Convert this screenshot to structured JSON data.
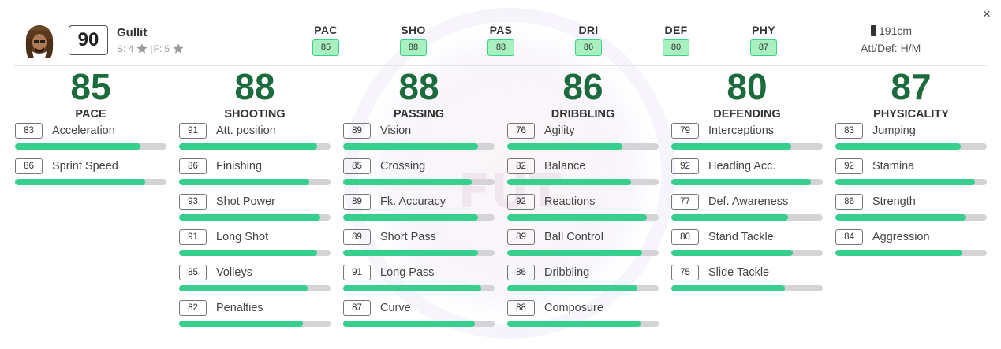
{
  "player": {
    "name": "Gullit",
    "rating": "90",
    "skills_label": "S: 4",
    "separator": "|",
    "weak_foot_label": "F: 5",
    "height": "191cm",
    "work_rate": "Att/Def: H/M"
  },
  "header_stats": [
    {
      "label": "PAC",
      "value": "85"
    },
    {
      "label": "SHO",
      "value": "88"
    },
    {
      "label": "PAS",
      "value": "88"
    },
    {
      "label": "DRI",
      "value": "86"
    },
    {
      "label": "DEF",
      "value": "80"
    },
    {
      "label": "PHY",
      "value": "87"
    }
  ],
  "close_label": "×",
  "watermark_text": "FUT",
  "colors": {
    "accent_green": "#1c6b3d",
    "bar_fill": "#36cf8d",
    "bar_track": "#d4d4d6",
    "badge_bg": "#a8f0c0",
    "badge_border": "#3ecf8e"
  },
  "categories": [
    {
      "value": "85",
      "name": "PACE",
      "attributes": [
        {
          "value": "83",
          "name": "Acceleration",
          "level": 83
        },
        {
          "value": "86",
          "name": "Sprint Speed",
          "level": 86
        }
      ]
    },
    {
      "value": "88",
      "name": "SHOOTING",
      "attributes": [
        {
          "value": "91",
          "name": "Att. position",
          "level": 91
        },
        {
          "value": "86",
          "name": "Finishing",
          "level": 86
        },
        {
          "value": "93",
          "name": "Shot Power",
          "level": 93
        },
        {
          "value": "91",
          "name": "Long Shot",
          "level": 91
        },
        {
          "value": "85",
          "name": "Volleys",
          "level": 85
        },
        {
          "value": "82",
          "name": "Penalties",
          "level": 82
        }
      ]
    },
    {
      "value": "88",
      "name": "PASSING",
      "attributes": [
        {
          "value": "89",
          "name": "Vision",
          "level": 89
        },
        {
          "value": "85",
          "name": "Crossing",
          "level": 85
        },
        {
          "value": "89",
          "name": "Fk. Accuracy",
          "level": 89
        },
        {
          "value": "89",
          "name": "Short Pass",
          "level": 89
        },
        {
          "value": "91",
          "name": "Long Pass",
          "level": 91
        },
        {
          "value": "87",
          "name": "Curve",
          "level": 87
        }
      ]
    },
    {
      "value": "86",
      "name": "DRIBBLING",
      "attributes": [
        {
          "value": "76",
          "name": "Agility",
          "level": 76
        },
        {
          "value": "82",
          "name": "Balance",
          "level": 82
        },
        {
          "value": "92",
          "name": "Reactions",
          "level": 92
        },
        {
          "value": "89",
          "name": "Ball Control",
          "level": 89
        },
        {
          "value": "86",
          "name": "Dribbling",
          "level": 86
        },
        {
          "value": "88",
          "name": "Composure",
          "level": 88
        }
      ]
    },
    {
      "value": "80",
      "name": "DEFENDING",
      "attributes": [
        {
          "value": "79",
          "name": "Interceptions",
          "level": 79
        },
        {
          "value": "92",
          "name": "Heading Acc.",
          "level": 92
        },
        {
          "value": "77",
          "name": "Def. Awareness",
          "level": 77
        },
        {
          "value": "80",
          "name": "Stand Tackle",
          "level": 80
        },
        {
          "value": "75",
          "name": "Slide Tackle",
          "level": 75
        }
      ]
    },
    {
      "value": "87",
      "name": "PHYSICALITY",
      "attributes": [
        {
          "value": "83",
          "name": "Jumping",
          "level": 83
        },
        {
          "value": "92",
          "name": "Stamina",
          "level": 92
        },
        {
          "value": "86",
          "name": "Strength",
          "level": 86
        },
        {
          "value": "84",
          "name": "Aggression",
          "level": 84
        }
      ]
    }
  ]
}
